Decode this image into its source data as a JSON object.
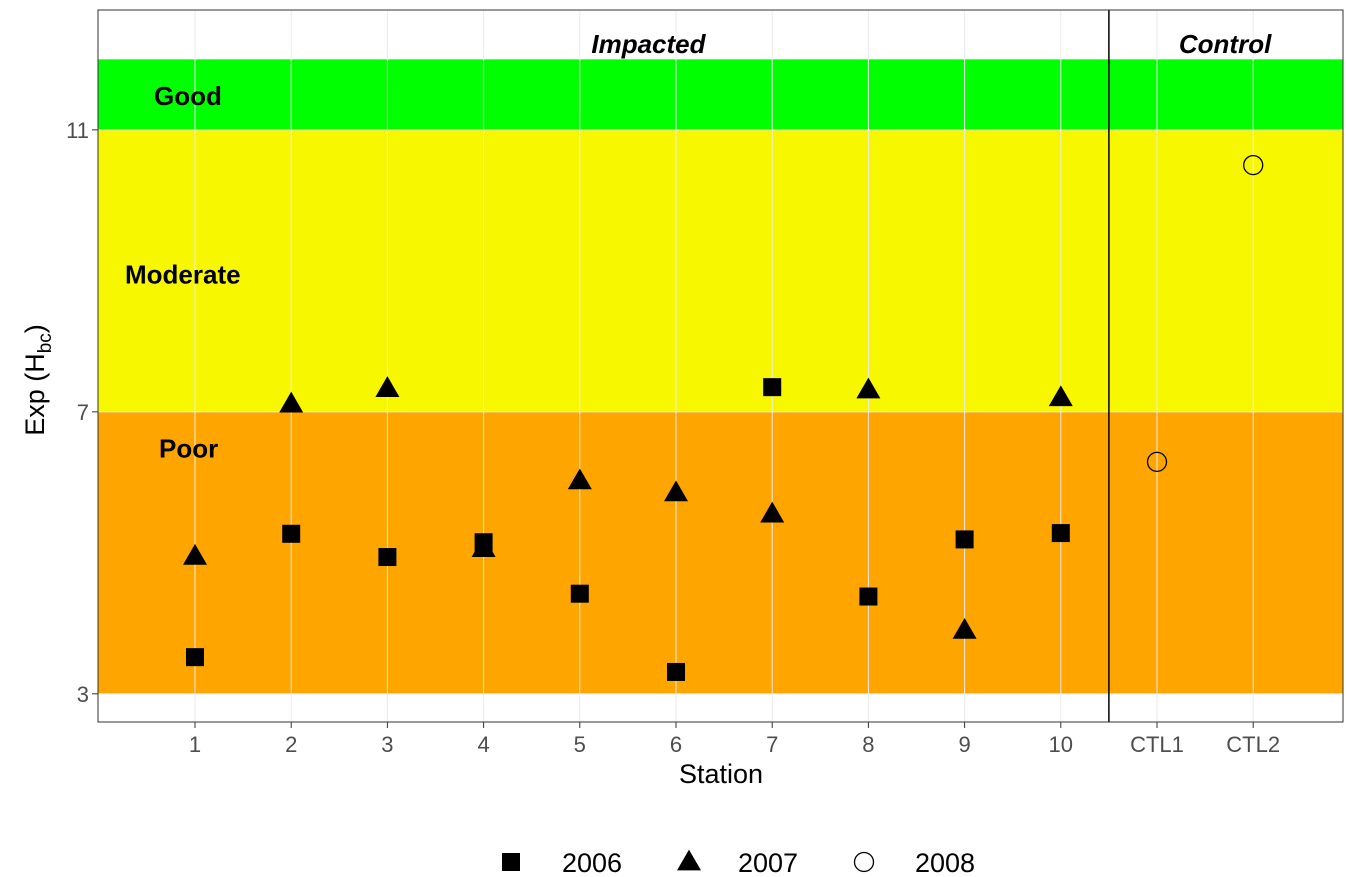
{
  "chart_data": {
    "type": "scatter",
    "xlabel": "Station",
    "ylabel_main": "Exp (H",
    "ylabel_sub": "bc",
    "ylabel_close": ")",
    "categories": [
      "1",
      "2",
      "3",
      "4",
      "5",
      "6",
      "7",
      "8",
      "9",
      "10",
      "CTL1",
      "CTL2"
    ],
    "ylim": [
      2.6,
      12.7
    ],
    "yticks": [
      3,
      7,
      11
    ],
    "grid": true,
    "groups": [
      {
        "label": "Impacted",
        "categories": [
          "1",
          "2",
          "3",
          "4",
          "5",
          "6",
          "7",
          "8",
          "9",
          "10"
        ]
      },
      {
        "label": "Control",
        "categories": [
          "CTL1",
          "CTL2"
        ]
      }
    ],
    "bands": [
      {
        "label": "Good",
        "from": 11,
        "to": 12.0,
        "color": "#00ff00"
      },
      {
        "label": "Moderate",
        "from": 7,
        "to": 11,
        "color": "#f7f700"
      },
      {
        "label": "Poor",
        "from": 3,
        "to": 7,
        "color": "#ffa500"
      }
    ],
    "series": [
      {
        "name": "2006",
        "marker": "square",
        "points": [
          {
            "x": "1",
            "y": 3.52
          },
          {
            "x": "2",
            "y": 5.27
          },
          {
            "x": "3",
            "y": 4.94
          },
          {
            "x": "4",
            "y": 5.15
          },
          {
            "x": "5",
            "y": 4.42
          },
          {
            "x": "6",
            "y": 3.31
          },
          {
            "x": "7",
            "y": 7.35
          },
          {
            "x": "8",
            "y": 4.38
          },
          {
            "x": "9",
            "y": 5.19
          },
          {
            "x": "10",
            "y": 5.28
          }
        ]
      },
      {
        "name": "2007",
        "marker": "triangle",
        "points": [
          {
            "x": "1",
            "y": 4.95
          },
          {
            "x": "2",
            "y": 7.11
          },
          {
            "x": "3",
            "y": 7.33
          },
          {
            "x": "4",
            "y": 5.06
          },
          {
            "x": "5",
            "y": 6.02
          },
          {
            "x": "6",
            "y": 5.85
          },
          {
            "x": "7",
            "y": 5.55
          },
          {
            "x": "8",
            "y": 7.31
          },
          {
            "x": "9",
            "y": 3.9
          },
          {
            "x": "10",
            "y": 7.2
          }
        ]
      },
      {
        "name": "2008",
        "marker": "circle",
        "points": [
          {
            "x": "CTL1",
            "y": 6.29
          },
          {
            "x": "CTL2",
            "y": 10.5
          }
        ]
      }
    ]
  }
}
